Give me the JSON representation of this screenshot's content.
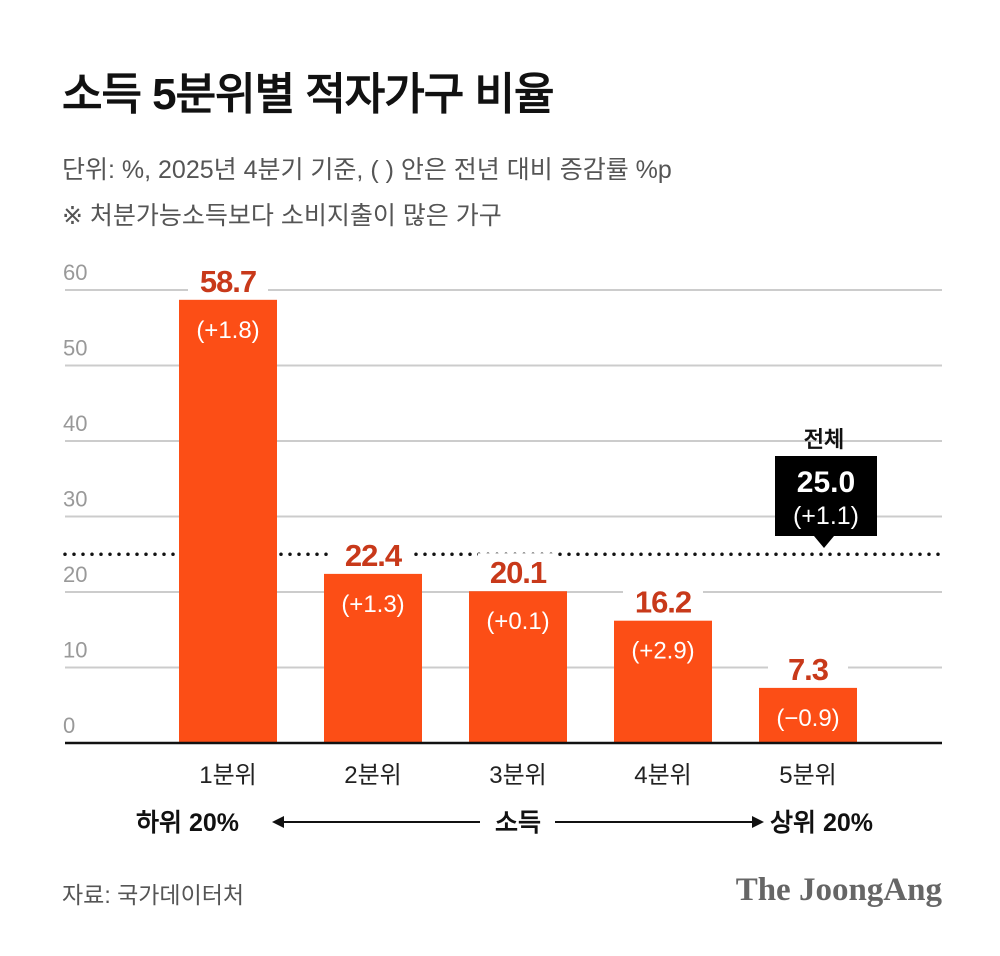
{
  "header": {
    "title": "소득 5분위별 적자가구 비율",
    "subtitle": "단위: %, 2025년 4분기 기준, ( ) 안은 전년 대비 증감률 %p",
    "note": "※ 처분가능소득보다 소비지출이 많은 가구"
  },
  "chart_data": {
    "type": "bar",
    "title": "소득 5분위별 적자가구 비율",
    "categories": [
      "1분위",
      "2분위",
      "3분위",
      "4분위",
      "5분위"
    ],
    "values": [
      58.7,
      22.4,
      20.1,
      16.2,
      7.3
    ],
    "value_labels": [
      "58.7",
      "22.4",
      "20.1",
      "16.2",
      "7.3"
    ],
    "change_labels": [
      "(+1.8)",
      "(+1.3)",
      "(+0.1)",
      "(+2.9)",
      "(−0.9)"
    ],
    "ylim": [
      0,
      60
    ],
    "yticks": [
      0,
      10,
      20,
      30,
      40,
      50,
      60
    ],
    "grid": true,
    "reference_line": {
      "label": "전체",
      "value": 25.0,
      "value_label": "25.0",
      "change_label": "(+1.1)"
    },
    "x_axis_annotation": {
      "left": "하위 20%",
      "center": "소득",
      "right": "상위 20%"
    },
    "colors": {
      "bar": "#fc4e16",
      "value_label": "#c8391a",
      "grid": "#cccccc",
      "tick": "#999999",
      "reference": "#111111"
    }
  },
  "footer": {
    "source": "자료: 국가데이터처",
    "logo": "The JoongAng"
  }
}
